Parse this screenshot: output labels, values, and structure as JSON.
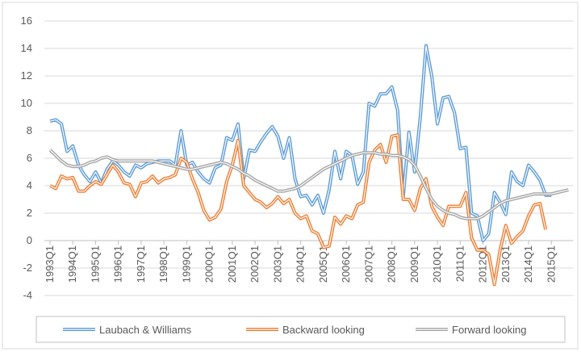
{
  "chart_data": {
    "type": "line",
    "categories": [
      "1993Q1",
      null,
      null,
      null,
      "1994Q1",
      null,
      null,
      null,
      "1995Q1",
      null,
      null,
      null,
      "1996Q1",
      null,
      null,
      null,
      "1997Q1",
      null,
      null,
      null,
      "1998Q1",
      null,
      null,
      null,
      "1999Q1",
      null,
      null,
      null,
      "2000Q1",
      null,
      null,
      null,
      "2001Q1",
      null,
      null,
      null,
      "2002Q1",
      null,
      null,
      null,
      "2003Q1",
      null,
      null,
      null,
      "2004Q1",
      null,
      null,
      null,
      "2005Q1",
      null,
      null,
      null,
      "2006Q1",
      null,
      null,
      null,
      "2007Q1",
      null,
      null,
      null,
      "2008Q1",
      null,
      null,
      null,
      "2009Q1",
      null,
      null,
      null,
      "2010Q1",
      null,
      null,
      null,
      "2011Q1",
      null,
      null,
      null,
      "2012Q1",
      null,
      null,
      null,
      "2013Q1",
      null,
      null,
      null,
      "2014Q1",
      null,
      null,
      null,
      "2015Q1",
      null,
      null,
      null
    ],
    "series": [
      {
        "name": "Laubach & Williams",
        "color": "#5b9bd5",
        "values": [
          8.7,
          8.8,
          8.5,
          6.5,
          6.9,
          5.5,
          4.8,
          4.3,
          5.0,
          4.2,
          5.2,
          5.8,
          5.5,
          5.0,
          4.7,
          5.5,
          5.3,
          5.6,
          5.7,
          5.8,
          5.8,
          5.8,
          5.5,
          8.0,
          5.5,
          5.7,
          5.0,
          4.5,
          4.2,
          5.3,
          5.5,
          7.5,
          7.3,
          8.5,
          4.5,
          6.6,
          6.5,
          7.2,
          7.8,
          8.3,
          7.6,
          6.0,
          7.5,
          4.5,
          3.2,
          3.3,
          2.6,
          3.3,
          2.0,
          3.7,
          6.5,
          4.5,
          6.5,
          6.2,
          4.1,
          5.0,
          10.0,
          9.8,
          10.7,
          10.7,
          11.2,
          9.5,
          3.2,
          7.9,
          5.0,
          9.0,
          14.2,
          12.0,
          8.5,
          10.4,
          10.5,
          9.3,
          6.7,
          6.8,
          2.0,
          1.8,
          0.0,
          0.5,
          3.5,
          2.8,
          1.9,
          5.0,
          4.3,
          4.0,
          5.5,
          5.0,
          4.4,
          3.3,
          3.3,
          null,
          null,
          null
        ]
      },
      {
        "name": "Backward looking",
        "color": "#ed7d31",
        "values": [
          4.0,
          3.8,
          4.7,
          4.5,
          4.6,
          3.6,
          3.6,
          4.0,
          4.3,
          4.1,
          4.8,
          5.5,
          5.0,
          4.2,
          4.1,
          3.2,
          4.2,
          4.3,
          4.7,
          4.2,
          4.5,
          4.6,
          4.8,
          6.0,
          5.7,
          4.5,
          3.5,
          2.2,
          1.5,
          1.7,
          2.3,
          4.3,
          5.5,
          7.3,
          4.0,
          3.5,
          3.0,
          2.8,
          2.4,
          2.7,
          3.2,
          2.7,
          3.0,
          2.0,
          1.6,
          1.8,
          0.7,
          0.5,
          -0.5,
          -0.4,
          1.7,
          1.2,
          1.8,
          1.6,
          2.6,
          2.8,
          5.7,
          6.6,
          7.0,
          5.7,
          7.6,
          7.7,
          3.0,
          3.0,
          2.2,
          3.8,
          4.5,
          2.5,
          1.7,
          1.1,
          2.5,
          2.5,
          2.5,
          3.5,
          0.2,
          -0.7,
          -0.7,
          -1.0,
          -3.2,
          -0.7,
          1.1,
          -0.2,
          0.3,
          0.7,
          1.8,
          2.6,
          2.7,
          0.8,
          null,
          null,
          null,
          null
        ]
      },
      {
        "name": "Forward looking",
        "color": "#a5a5a5",
        "values": [
          6.6,
          6.2,
          5.8,
          5.5,
          5.4,
          5.4,
          5.5,
          5.7,
          5.8,
          6.0,
          6.1,
          5.9,
          5.8,
          5.8,
          5.8,
          5.8,
          5.8,
          5.8,
          5.8,
          5.7,
          5.6,
          5.5,
          5.4,
          5.3,
          5.2,
          5.2,
          5.3,
          5.4,
          5.5,
          5.6,
          5.7,
          5.6,
          5.4,
          5.2,
          4.9,
          4.7,
          4.4,
          4.2,
          4.0,
          3.8,
          3.6,
          3.6,
          3.7,
          3.8,
          4.0,
          4.3,
          4.6,
          4.9,
          5.2,
          5.4,
          5.6,
          5.8,
          6.0,
          6.2,
          6.3,
          6.4,
          6.4,
          6.4,
          6.3,
          6.3,
          6.2,
          6.2,
          6.1,
          5.9,
          5.5,
          4.7,
          3.8,
          3.0,
          2.5,
          2.2,
          2.0,
          1.9,
          1.7,
          1.6,
          1.6,
          1.6,
          1.8,
          2.1,
          2.4,
          2.7,
          2.9,
          3.0,
          3.1,
          3.2,
          3.3,
          3.4,
          3.4,
          3.4,
          3.4,
          3.5,
          3.6,
          3.7
        ]
      }
    ],
    "ylim": [
      -4,
      16
    ],
    "yticks": [
      -4,
      -2,
      0,
      2,
      4,
      6,
      8,
      10,
      12,
      14,
      16
    ],
    "grid": true
  }
}
